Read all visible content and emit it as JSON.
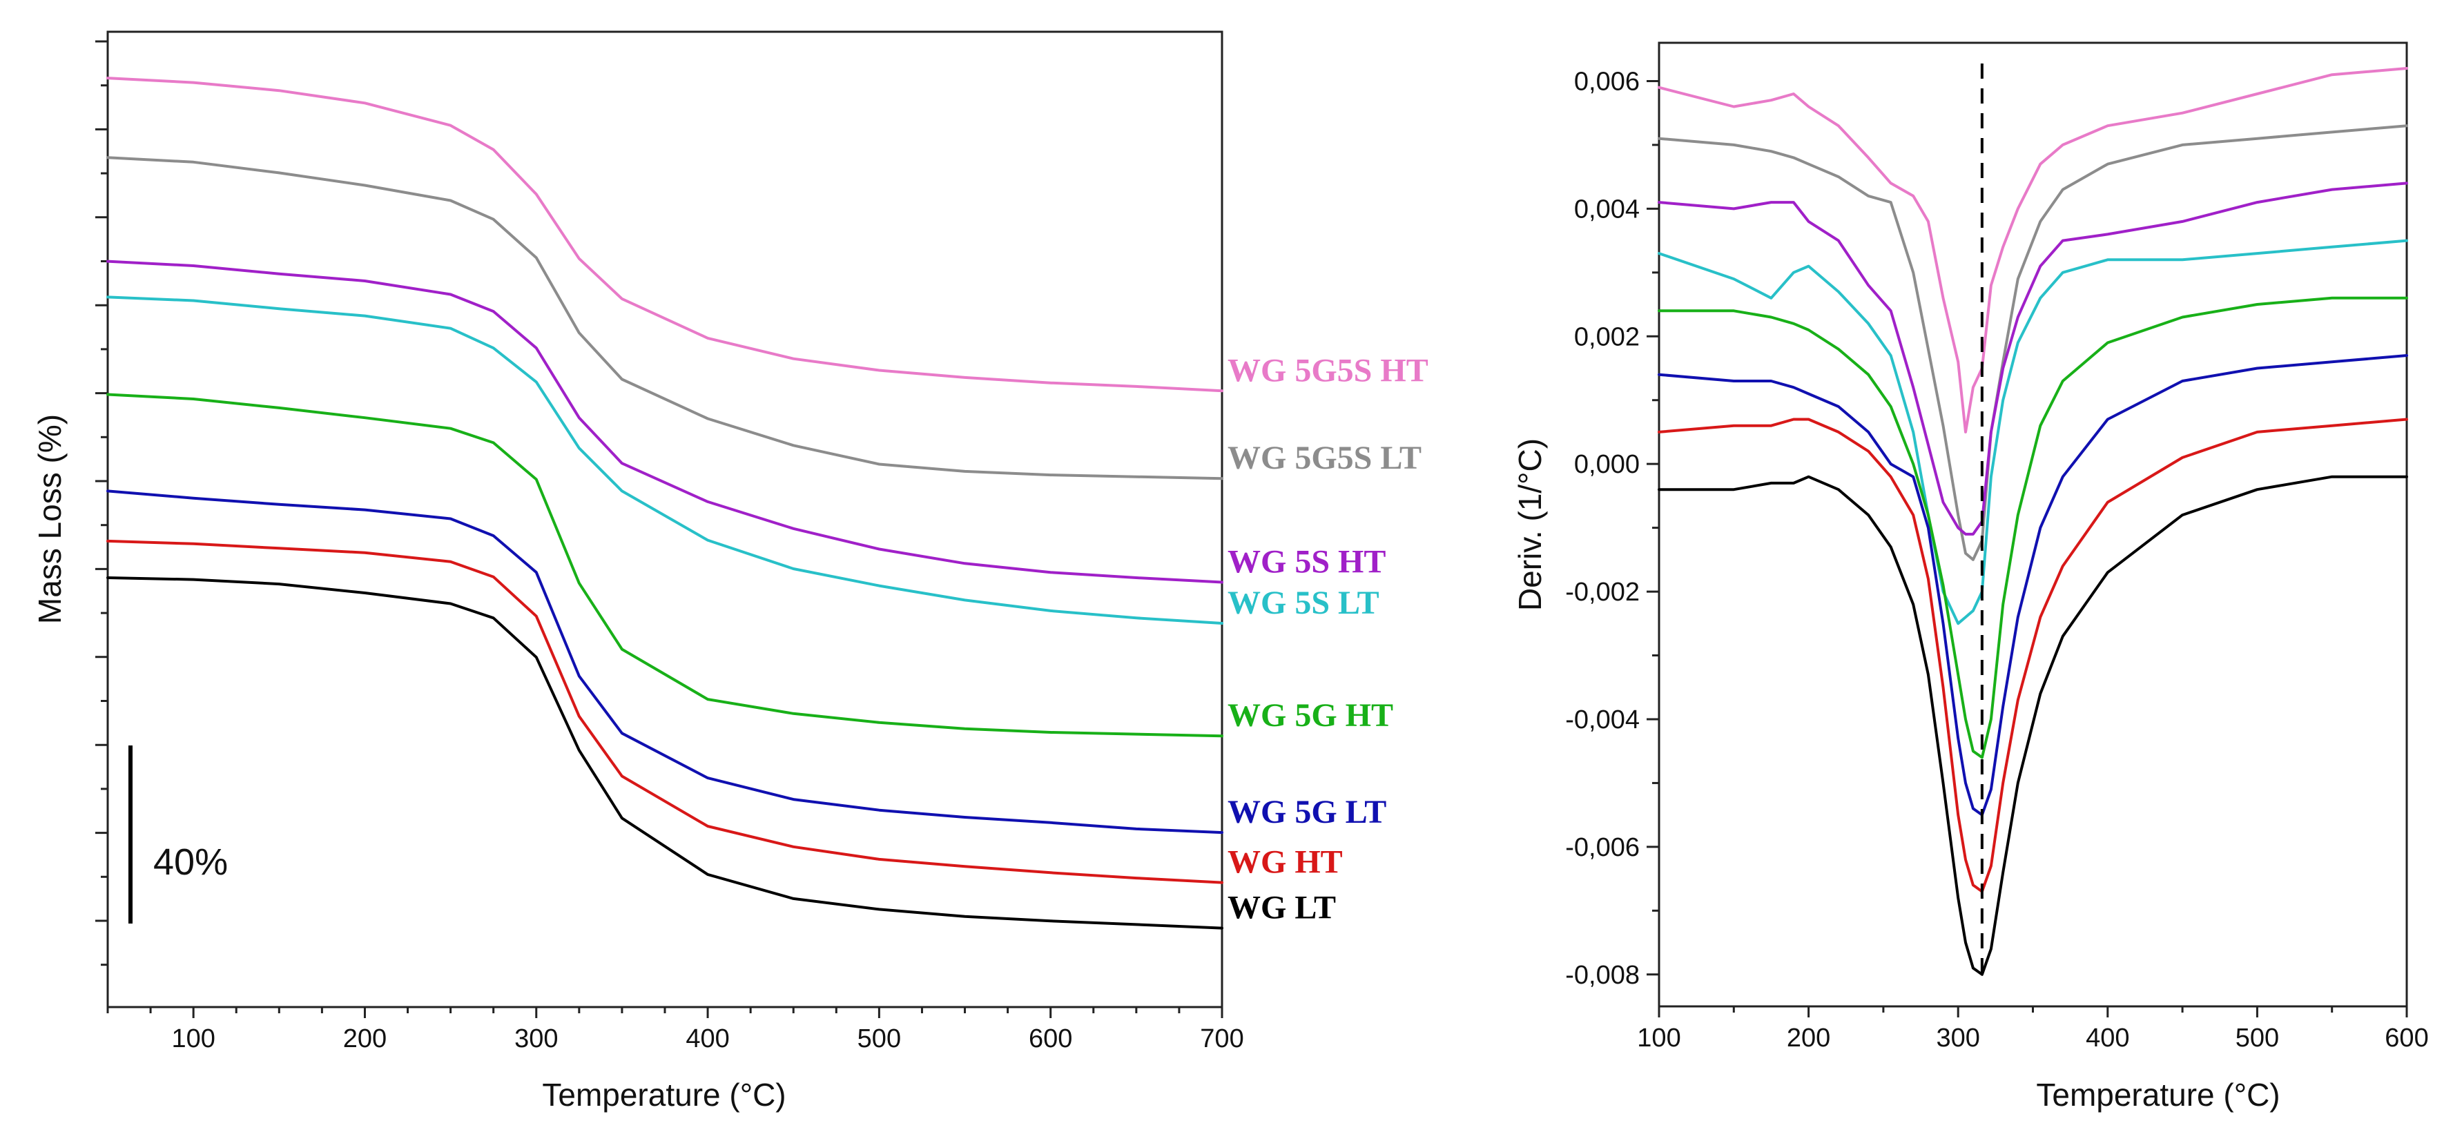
{
  "chart_data": [
    {
      "type": "line",
      "title": "",
      "xlabel": "Temperature (°C)",
      "ylabel": "Mass Loss (%)",
      "xlim": [
        50,
        700
      ],
      "x_ticks": [
        100,
        200,
        300,
        400,
        500,
        600,
        700
      ],
      "y_ticks_labeled": false,
      "ylim": [
        0,
        100
      ],
      "scale_bar_label": "40%",
      "scale_bar_value": 40,
      "x": [
        50,
        100,
        150,
        200,
        250,
        275,
        300,
        325,
        350,
        400,
        450,
        500,
        550,
        600,
        650,
        700
      ],
      "series": [
        {
          "name": "WG 5G5S HT",
          "color": "#e87ac8",
          "values": [
            97.6,
            97.1,
            96.2,
            94.8,
            92.3,
            89.6,
            84.6,
            77.4,
            72.9,
            68.5,
            66.2,
            64.9,
            64.1,
            63.5,
            63.1,
            62.6
          ]
        },
        {
          "name": "WG 5G5S LT",
          "color": "#8c8c8c",
          "values": [
            88.7,
            88.2,
            87.0,
            85.6,
            83.9,
            81.8,
            77.5,
            69.1,
            63.9,
            59.5,
            56.5,
            54.4,
            53.6,
            53.2,
            53.0,
            52.8
          ]
        },
        {
          "name": "WG 5S HT",
          "color": "#a020c8",
          "values": [
            77.1,
            76.6,
            75.7,
            74.9,
            73.4,
            71.5,
            67.4,
            59.6,
            54.5,
            50.2,
            47.2,
            44.9,
            43.3,
            42.3,
            41.7,
            41.2
          ]
        },
        {
          "name": "WG 5S LT",
          "color": "#28c0c8",
          "values": [
            73.1,
            72.7,
            71.8,
            71.0,
            69.6,
            67.4,
            63.6,
            56.2,
            51.4,
            45.9,
            42.7,
            40.8,
            39.2,
            38.0,
            37.2,
            36.6
          ]
        },
        {
          "name": "WG 5G HT",
          "color": "#18b018",
          "values": [
            62.2,
            61.7,
            60.7,
            59.6,
            58.4,
            56.8,
            52.7,
            41.1,
            33.7,
            28.1,
            26.5,
            25.5,
            24.8,
            24.4,
            24.2,
            24.0
          ]
        },
        {
          "name": "WG 5G LT",
          "color": "#1010b0",
          "values": [
            51.4,
            50.6,
            49.9,
            49.3,
            48.3,
            46.4,
            42.3,
            30.7,
            24.3,
            19.3,
            16.9,
            15.7,
            14.9,
            14.3,
            13.6,
            13.2
          ]
        },
        {
          "name": "WG HT",
          "color": "#d81818",
          "values": [
            45.8,
            45.5,
            45.0,
            44.5,
            43.5,
            41.8,
            37.4,
            26.2,
            19.5,
            13.9,
            11.6,
            10.2,
            9.4,
            8.7,
            8.1,
            7.6
          ]
        },
        {
          "name": "WG LT",
          "color": "#000000",
          "values": [
            41.7,
            41.5,
            41.0,
            40.0,
            38.8,
            37.2,
            32.8,
            22.4,
            14.8,
            8.5,
            5.8,
            4.6,
            3.8,
            3.3,
            2.9,
            2.5
          ]
        }
      ]
    },
    {
      "type": "line",
      "title": "",
      "xlabel": "Temperature (°C)",
      "ylabel": "Deriv. (1/°C)",
      "xlim": [
        100,
        600
      ],
      "ylim": [
        -0.0085,
        0.0066
      ],
      "x_ticks": [
        100,
        200,
        300,
        400,
        500,
        600
      ],
      "y_ticks": [
        -0.008,
        -0.006,
        -0.004,
        -0.002,
        0.0,
        0.002,
        0.004,
        0.006
      ],
      "y_tick_labels": [
        "-0,008",
        "-0,006",
        "-0,004",
        "-0,002",
        "0,000",
        "0,002",
        "0,004",
        "0,006"
      ],
      "reference_line_x": 316,
      "x": [
        100,
        150,
        175,
        190,
        200,
        220,
        240,
        255,
        270,
        280,
        290,
        300,
        305,
        310,
        316,
        322,
        330,
        340,
        355,
        370,
        400,
        450,
        500,
        550,
        600
      ],
      "series": [
        {
          "name": "WG 5G5S HT",
          "color": "#e87ac8",
          "values": [
            0.0059,
            0.0056,
            0.0057,
            0.0058,
            0.0056,
            0.0053,
            0.0048,
            0.0044,
            0.0042,
            0.0038,
            0.0026,
            0.0016,
            0.0005,
            0.0012,
            0.0015,
            0.0028,
            0.0034,
            0.004,
            0.0047,
            0.005,
            0.0053,
            0.0055,
            0.0058,
            0.0061,
            0.0062
          ]
        },
        {
          "name": "WG 5G5S LT",
          "color": "#8c8c8c",
          "values": [
            0.0051,
            0.005,
            0.0049,
            0.0048,
            0.0047,
            0.0045,
            0.0042,
            0.0041,
            0.003,
            0.0018,
            0.0006,
            -0.0008,
            -0.0014,
            -0.0015,
            -0.0012,
            0.0005,
            0.0016,
            0.0029,
            0.0038,
            0.0043,
            0.0047,
            0.005,
            0.0051,
            0.0052,
            0.0053
          ]
        },
        {
          "name": "WG 5S HT",
          "color": "#a020c8",
          "values": [
            0.0041,
            0.004,
            0.0041,
            0.0041,
            0.0038,
            0.0035,
            0.0028,
            0.0024,
            0.0012,
            0.0003,
            -0.0006,
            -0.001,
            -0.0011,
            -0.0011,
            -0.0009,
            0.0005,
            0.0015,
            0.0023,
            0.0031,
            0.0035,
            0.0036,
            0.0038,
            0.0041,
            0.0043,
            0.0044
          ]
        },
        {
          "name": "WG 5S LT",
          "color": "#28c0c8",
          "values": [
            0.0033,
            0.0029,
            0.0026,
            0.003,
            0.0031,
            0.0027,
            0.0022,
            0.0017,
            0.0005,
            -0.0008,
            -0.002,
            -0.0025,
            -0.0024,
            -0.0023,
            -0.002,
            -0.0002,
            0.001,
            0.0019,
            0.0026,
            0.003,
            0.0032,
            0.0032,
            0.0033,
            0.0034,
            0.0035
          ]
        },
        {
          "name": "WG 5G HT",
          "color": "#18b018",
          "values": [
            0.0024,
            0.0024,
            0.0023,
            0.0022,
            0.0021,
            0.0018,
            0.0014,
            0.0009,
            0.0,
            -0.0008,
            -0.0019,
            -0.0033,
            -0.004,
            -0.0045,
            -0.0046,
            -0.004,
            -0.0022,
            -0.0008,
            0.0006,
            0.0013,
            0.0019,
            0.0023,
            0.0025,
            0.0026,
            0.0026
          ]
        },
        {
          "name": "WG 5G LT",
          "color": "#1010b0",
          "values": [
            0.0014,
            0.0013,
            0.0013,
            0.0012,
            0.0011,
            0.0009,
            0.0005,
            0.0,
            -0.0002,
            -0.001,
            -0.0025,
            -0.0043,
            -0.005,
            -0.0054,
            -0.0055,
            -0.0051,
            -0.0038,
            -0.0024,
            -0.001,
            -0.0002,
            0.0007,
            0.0013,
            0.0015,
            0.0016,
            0.0017
          ]
        },
        {
          "name": "WG HT",
          "color": "#d81818",
          "values": [
            0.0005,
            0.0006,
            0.0006,
            0.0007,
            0.0007,
            0.0005,
            0.0002,
            -0.0002,
            -0.0008,
            -0.0018,
            -0.0035,
            -0.0055,
            -0.0062,
            -0.0066,
            -0.0067,
            -0.0063,
            -0.005,
            -0.0037,
            -0.0024,
            -0.0016,
            -0.0006,
            0.0001,
            0.0005,
            0.0006,
            0.0007
          ]
        },
        {
          "name": "WG LT",
          "color": "#000000",
          "values": [
            -0.0004,
            -0.0004,
            -0.0003,
            -0.0003,
            -0.0002,
            -0.0004,
            -0.0008,
            -0.0013,
            -0.0022,
            -0.0033,
            -0.005,
            -0.0068,
            -0.0075,
            -0.0079,
            -0.008,
            -0.0076,
            -0.0064,
            -0.005,
            -0.0036,
            -0.0027,
            -0.0017,
            -0.0008,
            -0.0004,
            -0.0002,
            -0.0002
          ]
        }
      ]
    }
  ]
}
